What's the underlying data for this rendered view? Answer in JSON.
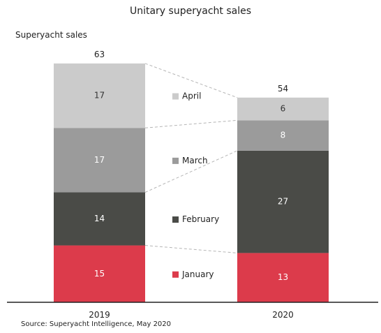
{
  "chart_data": {
    "type": "bar",
    "stacked": true,
    "title": "Unitary superyacht sales",
    "ylabel": "Superyacht sales",
    "categories": [
      "2019",
      "2020"
    ],
    "totals": [
      63,
      54
    ],
    "series": [
      {
        "name": "January",
        "values": [
          15,
          13
        ],
        "color": "#dc3b4b",
        "text_color": "#ffffff"
      },
      {
        "name": "February",
        "values": [
          14,
          27
        ],
        "color": "#4a4b47",
        "text_color": "#ffffff"
      },
      {
        "name": "March",
        "values": [
          17,
          8
        ],
        "color": "#9b9b9b",
        "text_color": "#ffffff"
      },
      {
        "name": "April",
        "values": [
          17,
          6
        ],
        "color": "#cbcbcb",
        "text_color": "#333333"
      }
    ],
    "legend_placement": "center, between bars",
    "grid": false
  },
  "source": "Source: Superyacht Intelligence, May 2020"
}
